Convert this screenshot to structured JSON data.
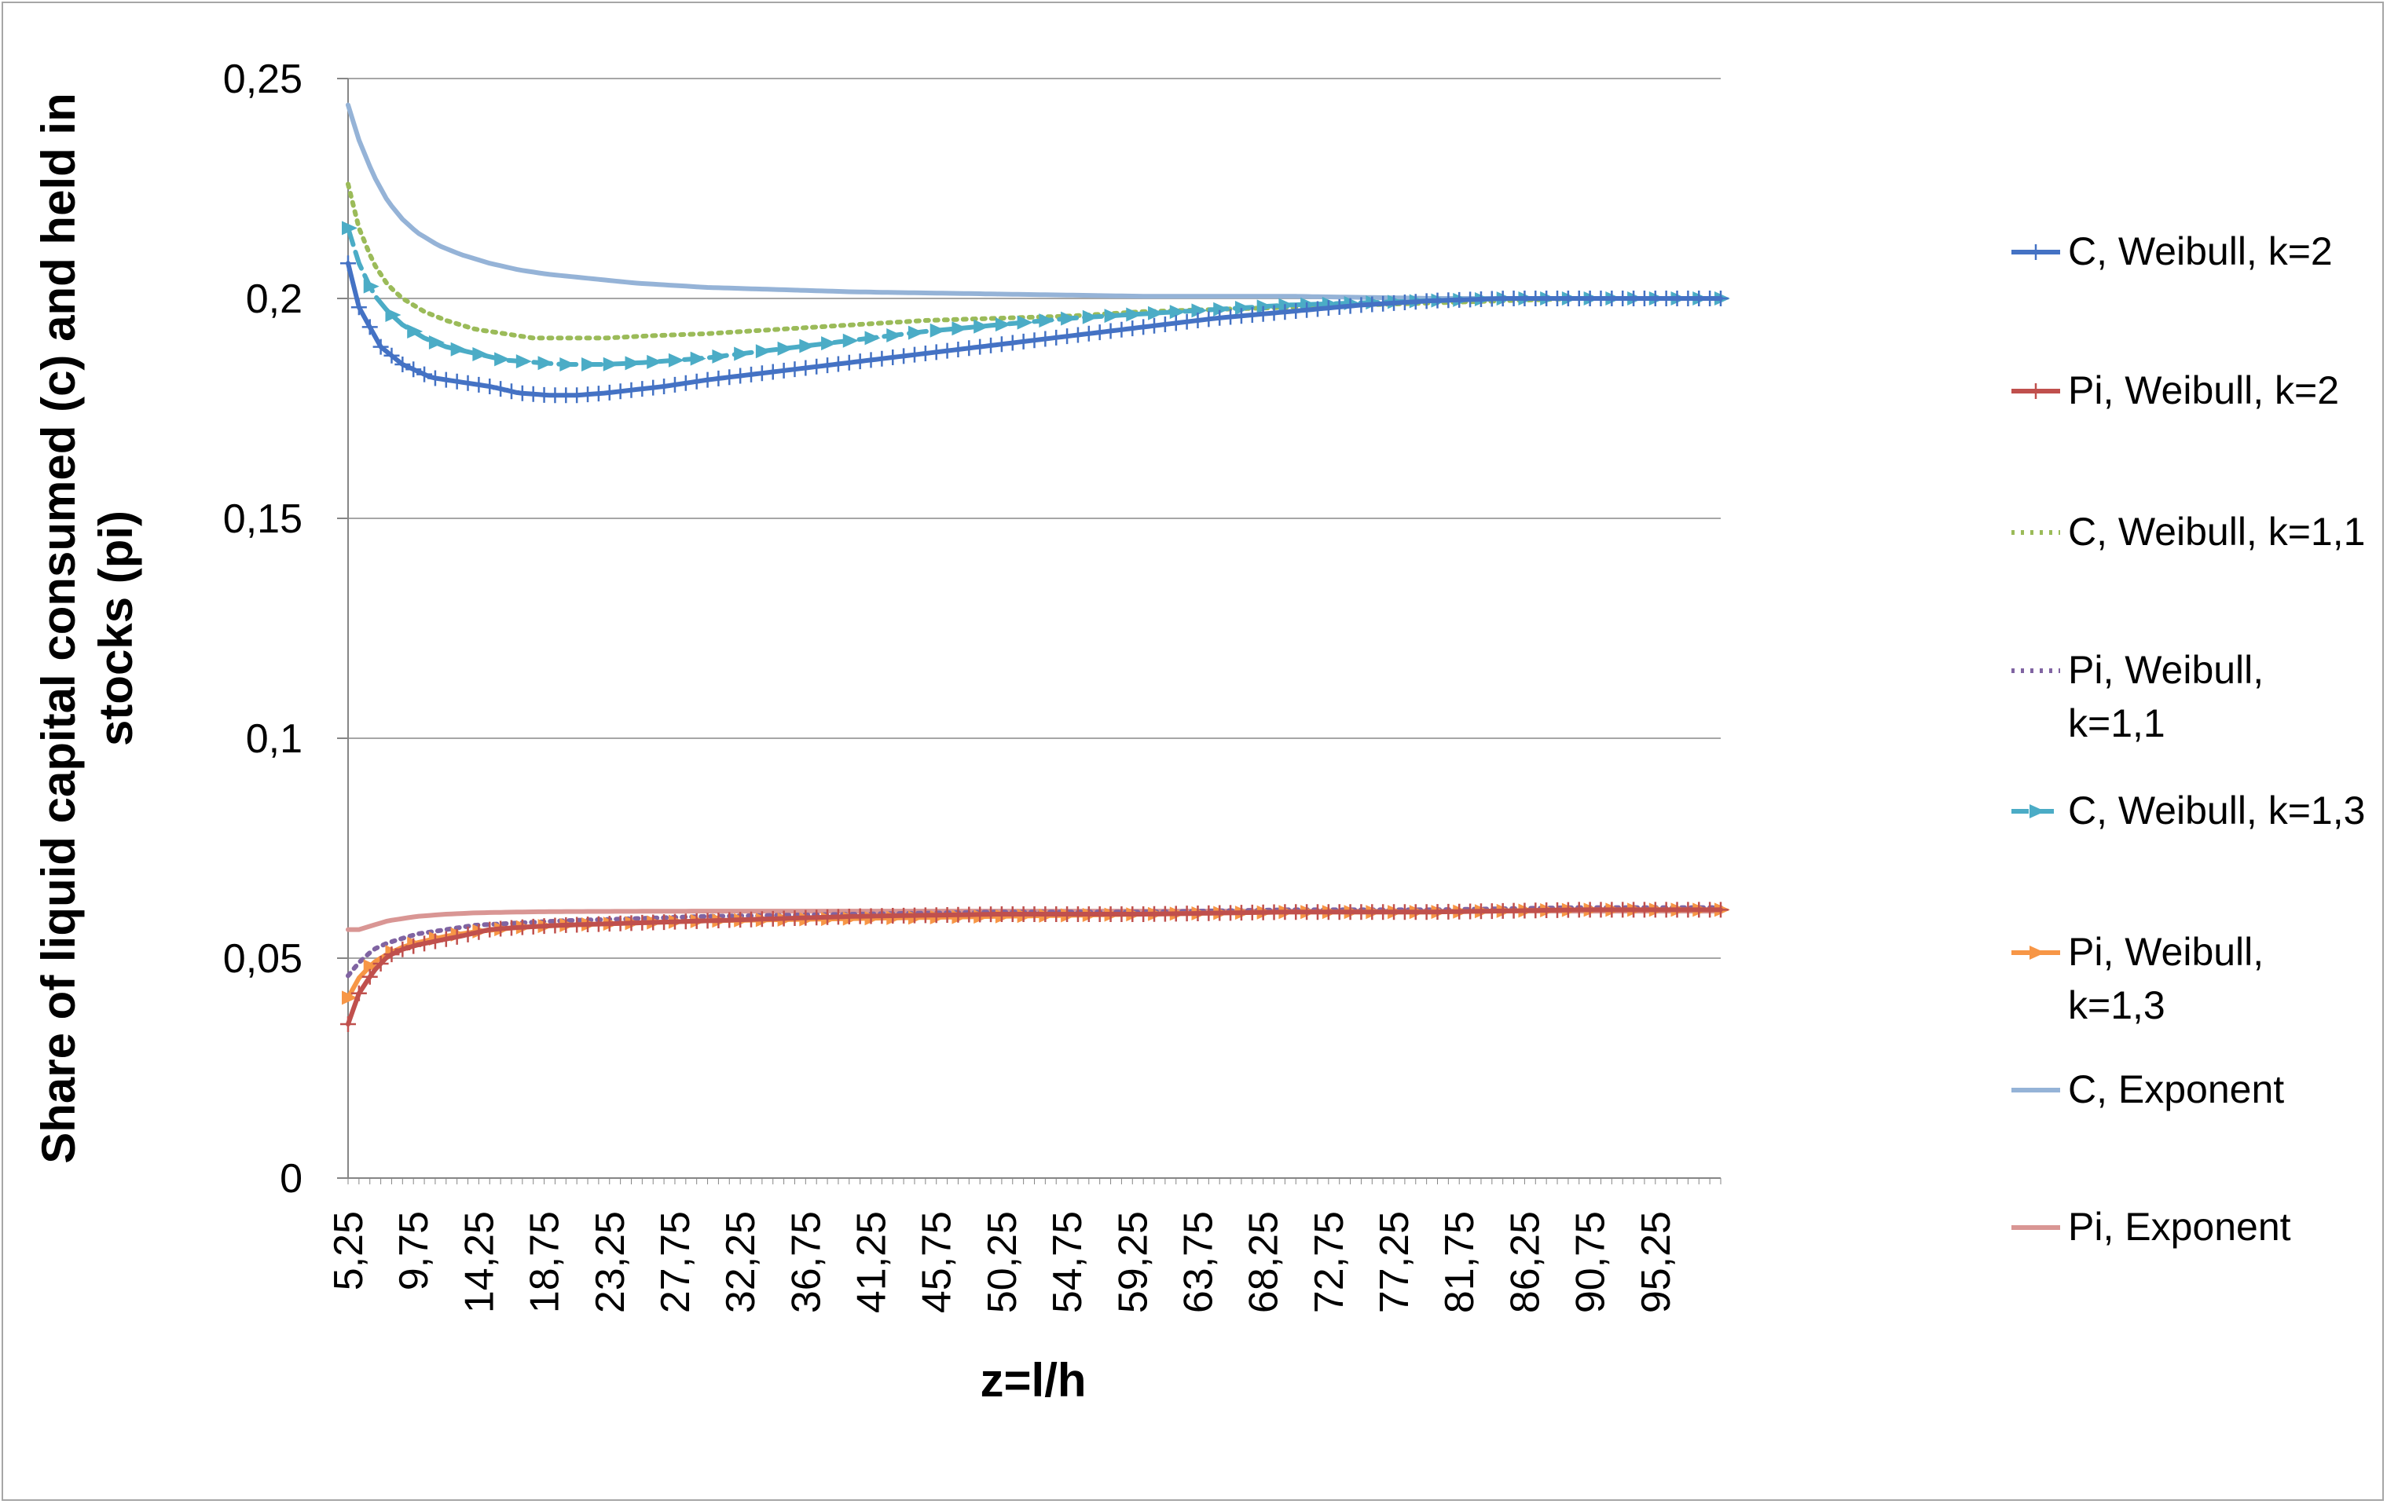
{
  "chart_data": {
    "type": "line",
    "xlabel": "z=l/h",
    "ylabel": "Share of liquid capital consumed (c) and held in stocks (pi)",
    "ylim": [
      0,
      0.25
    ],
    "yticks": [
      "0",
      "0,05",
      "0,1",
      "0,15",
      "0,2",
      "0,25"
    ],
    "ytick_values": [
      0,
      0.05,
      0.1,
      0.15,
      0.2,
      0.25
    ],
    "xrange": [
      5.25,
      99.75
    ],
    "xstep": 0.75,
    "xtick_labels": [
      "5,25",
      "9,75",
      "14,25",
      "18,75",
      "23,25",
      "27,75",
      "32,25",
      "36,75",
      "41,25",
      "45,75",
      "50,25",
      "54,75",
      "59,25",
      "63,75",
      "68,25",
      "72,75",
      "77,25",
      "81,75",
      "86,25",
      "90,75",
      "95,25"
    ],
    "xtick_values": [
      5.25,
      9.75,
      14.25,
      18.75,
      23.25,
      27.75,
      32.25,
      36.75,
      41.25,
      45.75,
      50.25,
      54.75,
      59.25,
      63.75,
      68.25,
      72.75,
      77.25,
      81.75,
      86.25,
      90.75,
      95.25
    ],
    "grid": "horizontal",
    "legend_position": "right",
    "series": [
      {
        "name": "C, Weibull, k=2",
        "color": "#4472c4",
        "style": "solid",
        "marker": "plus",
        "points": [
          [
            5.25,
            0.208
          ],
          [
            6,
            0.198
          ],
          [
            7.5,
            0.189
          ],
          [
            9,
            0.185
          ],
          [
            11,
            0.182
          ],
          [
            13,
            0.181
          ],
          [
            15,
            0.18
          ],
          [
            17,
            0.1785
          ],
          [
            19,
            0.178
          ],
          [
            21,
            0.178
          ],
          [
            23,
            0.1785
          ],
          [
            27,
            0.18
          ],
          [
            30,
            0.1815
          ],
          [
            35,
            0.1835
          ],
          [
            40,
            0.1855
          ],
          [
            45,
            0.1875
          ],
          [
            50,
            0.1895
          ],
          [
            55,
            0.1915
          ],
          [
            60,
            0.1935
          ],
          [
            65,
            0.1955
          ],
          [
            70,
            0.197
          ],
          [
            75,
            0.1985
          ],
          [
            80,
            0.1995
          ],
          [
            85,
            0.2
          ],
          [
            90,
            0.2
          ],
          [
            95,
            0.2
          ],
          [
            99.75,
            0.2
          ]
        ]
      },
      {
        "name": "Pi, Weibull, k=2",
        "color": "#c0504d",
        "style": "solid",
        "marker": "plus",
        "points": [
          [
            5.25,
            0.035
          ],
          [
            6,
            0.042
          ],
          [
            7,
            0.047
          ],
          [
            8,
            0.0505
          ],
          [
            9,
            0.052
          ],
          [
            10,
            0.053
          ],
          [
            11.5,
            0.054
          ],
          [
            13,
            0.055
          ],
          [
            15,
            0.0565
          ],
          [
            17,
            0.057
          ],
          [
            20,
            0.0575
          ],
          [
            25,
            0.058
          ],
          [
            30,
            0.0585
          ],
          [
            40,
            0.0595
          ],
          [
            50,
            0.06
          ],
          [
            60,
            0.06
          ],
          [
            70,
            0.0605
          ],
          [
            80,
            0.0605
          ],
          [
            90,
            0.061
          ],
          [
            99.75,
            0.061
          ]
        ]
      },
      {
        "name": "C, Weibull, k=1,1",
        "color": "#9bbb59",
        "style": "dotted",
        "marker": "none",
        "points": [
          [
            5.25,
            0.226
          ],
          [
            6,
            0.216
          ],
          [
            7,
            0.208
          ],
          [
            8,
            0.203
          ],
          [
            9,
            0.2
          ],
          [
            10.5,
            0.197
          ],
          [
            12,
            0.195
          ],
          [
            14,
            0.193
          ],
          [
            16,
            0.192
          ],
          [
            18,
            0.191
          ],
          [
            20,
            0.191
          ],
          [
            23,
            0.191
          ],
          [
            26,
            0.1915
          ],
          [
            30,
            0.192
          ],
          [
            35,
            0.193
          ],
          [
            40,
            0.194
          ],
          [
            45,
            0.195
          ],
          [
            50,
            0.1955
          ],
          [
            55,
            0.196
          ],
          [
            60,
            0.197
          ],
          [
            65,
            0.1975
          ],
          [
            70,
            0.198
          ],
          [
            75,
            0.1985
          ],
          [
            80,
            0.199
          ],
          [
            85,
            0.1995
          ],
          [
            90,
            0.2
          ],
          [
            99.75,
            0.2
          ]
        ]
      },
      {
        "name": "Pi, Weibull, k=1,1",
        "color": "#8064a2",
        "style": "dotted",
        "marker": "none",
        "points": [
          [
            5.25,
            0.046
          ],
          [
            6,
            0.049
          ],
          [
            7,
            0.052
          ],
          [
            8,
            0.0535
          ],
          [
            9,
            0.0545
          ],
          [
            10,
            0.0555
          ],
          [
            12,
            0.0565
          ],
          [
            14,
            0.0575
          ],
          [
            17,
            0.058
          ],
          [
            20,
            0.0585
          ],
          [
            25,
            0.059
          ],
          [
            30,
            0.0595
          ],
          [
            40,
            0.06
          ],
          [
            50,
            0.0605
          ],
          [
            60,
            0.0605
          ],
          [
            70,
            0.061
          ],
          [
            80,
            0.061
          ],
          [
            90,
            0.0615
          ],
          [
            99.75,
            0.0615
          ]
        ]
      },
      {
        "name": "C, Weibull, k=1,3",
        "color": "#4bacc6",
        "style": "dashed",
        "marker": "triangle-right",
        "points": [
          [
            5.25,
            0.216
          ],
          [
            6,
            0.208
          ],
          [
            7,
            0.201
          ],
          [
            8,
            0.197
          ],
          [
            9,
            0.194
          ],
          [
            10.5,
            0.191
          ],
          [
            12,
            0.189
          ],
          [
            14,
            0.1875
          ],
          [
            16,
            0.186
          ],
          [
            18,
            0.1855
          ],
          [
            20,
            0.185
          ],
          [
            23,
            0.185
          ],
          [
            26,
            0.1855
          ],
          [
            30,
            0.1865
          ],
          [
            35,
            0.1885
          ],
          [
            40,
            0.1905
          ],
          [
            45,
            0.1925
          ],
          [
            50,
            0.194
          ],
          [
            55,
            0.1955
          ],
          [
            60,
            0.1965
          ],
          [
            65,
            0.1975
          ],
          [
            70,
            0.1985
          ],
          [
            75,
            0.199
          ],
          [
            80,
            0.1995
          ],
          [
            85,
            0.2
          ],
          [
            90,
            0.2
          ],
          [
            99.75,
            0.2
          ]
        ]
      },
      {
        "name": "Pi, Weibull, k=1,3",
        "color": "#f79646",
        "style": "solid",
        "marker": "triangle-right",
        "points": [
          [
            5.25,
            0.041
          ],
          [
            6,
            0.0455
          ],
          [
            7,
            0.049
          ],
          [
            8,
            0.051
          ],
          [
            9,
            0.0525
          ],
          [
            10,
            0.0535
          ],
          [
            12,
            0.055
          ],
          [
            14,
            0.056
          ],
          [
            17,
            0.057
          ],
          [
            20,
            0.0575
          ],
          [
            25,
            0.058
          ],
          [
            30,
            0.0585
          ],
          [
            40,
            0.059
          ],
          [
            50,
            0.0595
          ],
          [
            60,
            0.06
          ],
          [
            70,
            0.0605
          ],
          [
            80,
            0.0605
          ],
          [
            90,
            0.061
          ],
          [
            99.75,
            0.061
          ]
        ]
      },
      {
        "name": "C, Exponent",
        "color": "#95b3d7",
        "style": "solid",
        "marker": "none",
        "points": [
          [
            5.25,
            0.244
          ],
          [
            6,
            0.236
          ],
          [
            7,
            0.228
          ],
          [
            8,
            0.222
          ],
          [
            9,
            0.218
          ],
          [
            10,
            0.215
          ],
          [
            11.5,
            0.212
          ],
          [
            13,
            0.21
          ],
          [
            15,
            0.208
          ],
          [
            17,
            0.2065
          ],
          [
            19,
            0.2055
          ],
          [
            22,
            0.2045
          ],
          [
            25,
            0.2035
          ],
          [
            30,
            0.2025
          ],
          [
            35,
            0.202
          ],
          [
            40,
            0.2015
          ],
          [
            50,
            0.201
          ],
          [
            60,
            0.2005
          ],
          [
            70,
            0.2005
          ],
          [
            80,
            0.2
          ],
          [
            99.75,
            0.2
          ]
        ]
      },
      {
        "name": "Pi, Exponent",
        "color": "#d99694",
        "style": "solid",
        "marker": "none",
        "points": [
          [
            5.25,
            0.0565
          ],
          [
            6,
            0.0565
          ],
          [
            7,
            0.0575
          ],
          [
            8,
            0.0585
          ],
          [
            9,
            0.059
          ],
          [
            10,
            0.0595
          ],
          [
            12,
            0.06
          ],
          [
            14,
            0.0603
          ],
          [
            17,
            0.0605
          ],
          [
            20,
            0.0606
          ],
          [
            30,
            0.0607
          ],
          [
            40,
            0.0607
          ],
          [
            60,
            0.0607
          ],
          [
            80,
            0.0607
          ],
          [
            99.75,
            0.0607
          ]
        ]
      }
    ]
  }
}
